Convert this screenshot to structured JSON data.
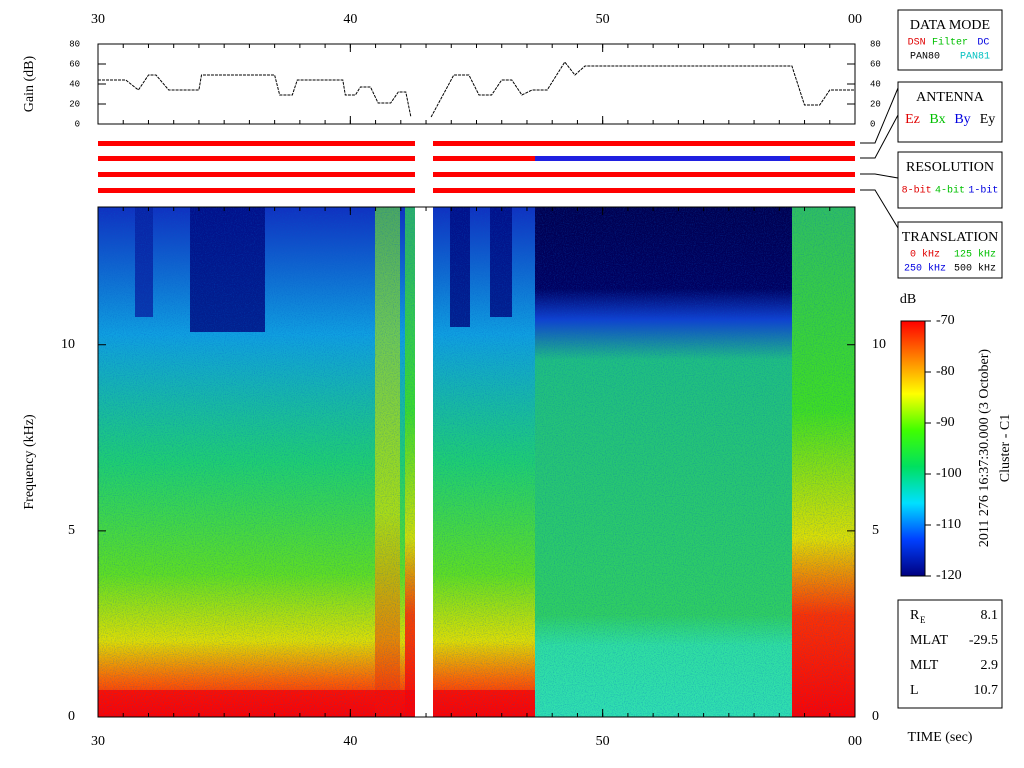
{
  "chart_data": [
    {
      "type": "line",
      "y_label": "Gain (dB)",
      "xlim": [
        30,
        60
      ],
      "xticks": [
        30,
        40,
        50,
        {
          "value": 60,
          "label": "00"
        }
      ],
      "ylim": [
        0,
        80
      ],
      "yticks": [
        0,
        20,
        40,
        60,
        80
      ],
      "series": [
        {
          "color": "#000000",
          "x": [
            30,
            31.1,
            31.6,
            32,
            32.3,
            32.8,
            34,
            34.1,
            37,
            37.2,
            37.7,
            37.9,
            39.7,
            39.8,
            40.2,
            40.4,
            40.8,
            41.1,
            41.6,
            41.9,
            42.2,
            42.4,
            42.8,
            43.2,
            44.1,
            44.7,
            45.1,
            45.6,
            46,
            46.4,
            46.8,
            47.2,
            47.8,
            48.5,
            48.9,
            49.3,
            57.5,
            58,
            58.6,
            59,
            60
          ],
          "values": [
            44,
            44,
            34,
            49,
            49,
            34,
            34,
            49,
            49,
            29,
            29,
            44,
            44,
            29,
            29,
            37,
            37,
            21,
            21,
            32,
            32,
            7,
            null,
            7,
            49,
            49,
            29,
            29,
            44,
            44,
            29,
            34,
            34,
            62,
            49,
            58,
            58,
            19,
            19,
            34,
            34
          ]
        }
      ]
    },
    {
      "type": "spectrogram",
      "y_label": "Frequency (kHz)",
      "x_label": "TIME (sec)",
      "title": "2011 276 16:37:30.000 (3 October)",
      "subtitle": "Cluster - C1",
      "xlim": [
        30,
        60
      ],
      "xticks": [
        30,
        40,
        50,
        {
          "value": 60,
          "label": "00"
        }
      ],
      "ylim": [
        0,
        13.7
      ],
      "yticks": [
        0,
        5,
        10
      ],
      "colorbar": {
        "label": "dB",
        "lim": [
          -120,
          -70
        ],
        "ticks": [
          -120,
          -110,
          -100,
          -90,
          -80,
          -70
        ],
        "colors": [
          "#000080",
          "#0040ff",
          "#00e0ff",
          "#00e060",
          "#40ff00",
          "#ffff00",
          "#ff8000",
          "#ff0000"
        ]
      }
    }
  ],
  "legends": [
    {
      "title": "DATA MODE",
      "rows": [
        [
          {
            "label": "DSN",
            "color": "#e00000"
          },
          {
            "label": "Filter",
            "color": "#00c000"
          },
          {
            "label": "DC",
            "color": "#0000e0"
          }
        ],
        [
          {
            "label": "PAN80",
            "color": "#000000"
          },
          {
            "label": "PAN81",
            "color": "#00c0c0"
          }
        ]
      ]
    },
    {
      "title": "ANTENNA",
      "rows": [
        [
          {
            "label": "Ez",
            "color": "#e00000"
          },
          {
            "label": "Bx",
            "color": "#00c000"
          },
          {
            "label": "By",
            "color": "#0000e0"
          },
          {
            "label": "Ey",
            "color": "#000000"
          }
        ]
      ]
    },
    {
      "title": "RESOLUTION",
      "rows": [
        [
          {
            "label": "8-bit",
            "color": "#e00000"
          },
          {
            "label": "4-bit",
            "color": "#00c000"
          },
          {
            "label": "1-bit",
            "color": "#0000e0"
          }
        ]
      ]
    },
    {
      "title": "TRANSLATION",
      "rows": [
        [
          {
            "label": "0 kHz",
            "color": "#e00000"
          },
          {
            "label": "125 kHz",
            "color": "#00c000"
          }
        ],
        [
          {
            "label": "250 kHz",
            "color": "#0000e0"
          },
          {
            "label": "500 kHz",
            "color": "#000000"
          }
        ]
      ]
    }
  ],
  "orbit": [
    {
      "label": "R",
      "label_sub": "E",
      "value": "8.1"
    },
    {
      "label": "MLAT",
      "value": "-29.5"
    },
    {
      "label": "MLT",
      "value": "2.9"
    },
    {
      "label": "L",
      "value": "10.7"
    }
  ]
}
